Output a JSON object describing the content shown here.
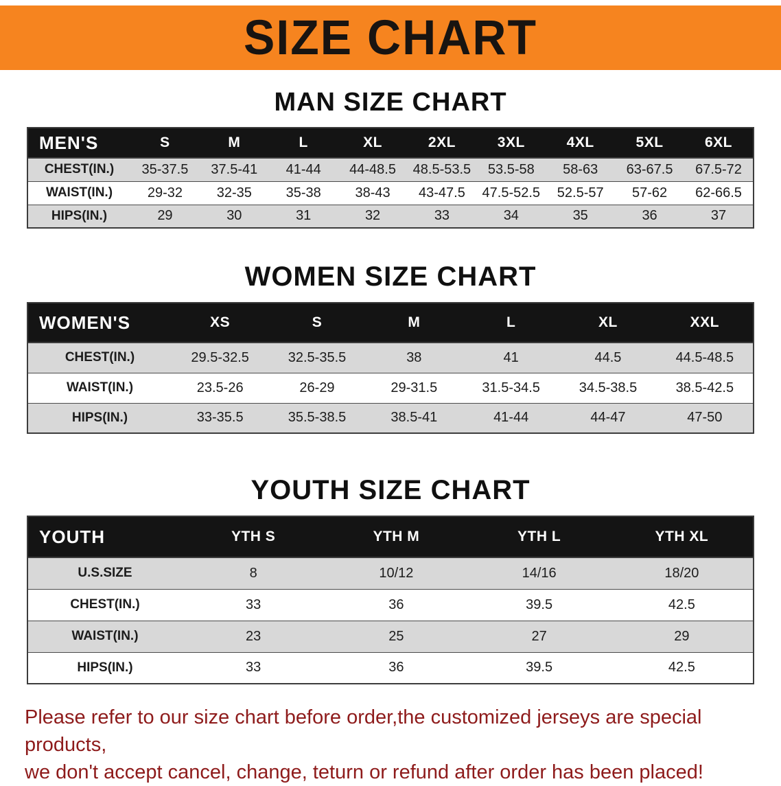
{
  "banner": {
    "title": "SIZE CHART",
    "bg_color": "#f6841f",
    "text_color": "#181411"
  },
  "colors": {
    "table_header_bg": "#141414",
    "table_alt_row": "#d8d8d8",
    "disclaimer_text": "#8e1b1b"
  },
  "sections": {
    "men": {
      "heading": "MAN SIZE CHART",
      "table": {
        "header": [
          "MEN'S",
          "S",
          "M",
          "L",
          "XL",
          "2XL",
          "3XL",
          "4XL",
          "5XL",
          "6XL"
        ],
        "rows": [
          [
            "CHEST(IN.)",
            "35-37.5",
            "37.5-41",
            "41-44",
            "44-48.5",
            "48.5-53.5",
            "53.5-58",
            "58-63",
            "63-67.5",
            "67.5-72"
          ],
          [
            "WAIST(IN.)",
            "29-32",
            "32-35",
            "35-38",
            "38-43",
            "43-47.5",
            "47.5-52.5",
            "52.5-57",
            "57-62",
            "62-66.5"
          ],
          [
            "HIPS(IN.)",
            "29",
            "30",
            "31",
            "32",
            "33",
            "34",
            "35",
            "36",
            "37"
          ]
        ]
      }
    },
    "women": {
      "heading": "WOMEN SIZE CHART",
      "table": {
        "header": [
          "WOMEN'S",
          "XS",
          "S",
          "M",
          "L",
          "XL",
          "XXL"
        ],
        "rows": [
          [
            "CHEST(IN.)",
            "29.5-32.5",
            "32.5-35.5",
            "38",
            "41",
            "44.5",
            "44.5-48.5"
          ],
          [
            "WAIST(IN.)",
            "23.5-26",
            "26-29",
            "29-31.5",
            "31.5-34.5",
            "34.5-38.5",
            "38.5-42.5"
          ],
          [
            "HIPS(IN.)",
            "33-35.5",
            "35.5-38.5",
            "38.5-41",
            "41-44",
            "44-47",
            "47-50"
          ]
        ]
      }
    },
    "youth": {
      "heading": "YOUTH SIZE CHART",
      "table": {
        "header": [
          "YOUTH",
          "YTH S",
          "YTH M",
          "YTH L",
          "YTH XL"
        ],
        "rows": [
          [
            "U.S.SIZE",
            "8",
            "10/12",
            "14/16",
            "18/20"
          ],
          [
            "CHEST(IN.)",
            "33",
            "36",
            "39.5",
            "42.5"
          ],
          [
            "WAIST(IN.)",
            "23",
            "25",
            "27",
            "29"
          ],
          [
            "HIPS(IN.)",
            "33",
            "36",
            "39.5",
            "42.5"
          ]
        ]
      }
    }
  },
  "footnote": {
    "line1": "Please refer to our size chart before order,the customized jerseys are special products,",
    "line2": "we don't accept cancel, change, teturn or refund after order has been placed!"
  }
}
